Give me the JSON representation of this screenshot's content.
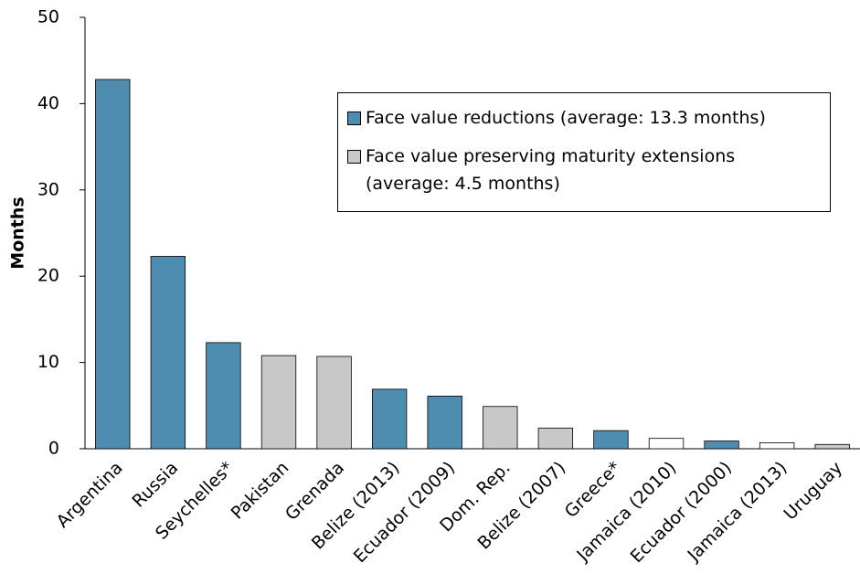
{
  "chart_data": {
    "type": "bar",
    "y_label": "Months",
    "categories": [
      "Argentina",
      "Russia",
      "Seychelles*",
      "Pakistan",
      "Grenada",
      "Belize (2013)",
      "Ecuador (2009)",
      "Dom. Rep.",
      "Belize (2007)",
      "Greece*",
      "Jamaica (2010)",
      "Ecuador (2000)",
      "Jamaica (2013)",
      "Uruguay"
    ],
    "values": [
      42.8,
      22.3,
      12.3,
      10.8,
      10.7,
      6.9,
      6.1,
      4.9,
      2.4,
      2.1,
      1.2,
      0.9,
      0.7,
      0.5
    ],
    "colors": [
      "#4f8db0",
      "#4f8db0",
      "#4f8db0",
      "#c8c8c8",
      "#c8c8c8",
      "#4f8db0",
      "#4f8db0",
      "#c8c8c8",
      "#c8c8c8",
      "#4f8db0",
      "#ffffff",
      "#4f8db0",
      "#ffffff",
      "#c8c8c8"
    ],
    "legend": [
      {
        "name": "Face value reductions (average: 13.3 months)",
        "color": "#4f8db0"
      },
      {
        "name": "Face value preserving maturity extensions (average: 4.5 months)",
        "color": "#c8c8c8"
      }
    ],
    "ylim": [
      0,
      50
    ],
    "yticks": [
      0,
      10,
      20,
      30,
      40,
      50
    ]
  }
}
